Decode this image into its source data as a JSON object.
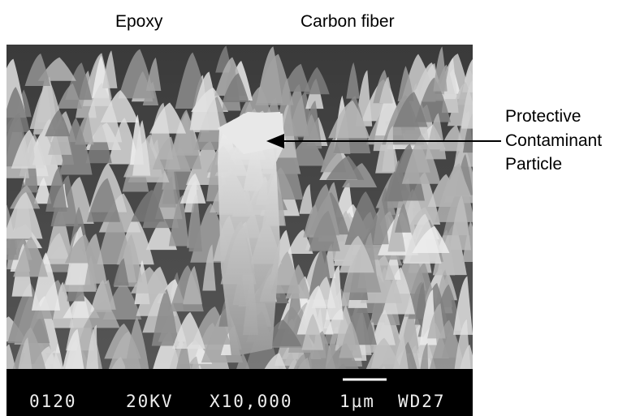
{
  "labels": {
    "epoxy": "Epoxy",
    "carbon_fiber": "Carbon fiber",
    "particle": [
      "Protective",
      "Contaminant",
      "Particle"
    ]
  },
  "sem_bar": {
    "sample": "0120",
    "voltage": "20KV",
    "magnification": "X10,000",
    "scale": "1µm",
    "working_distance": "WD27"
  }
}
